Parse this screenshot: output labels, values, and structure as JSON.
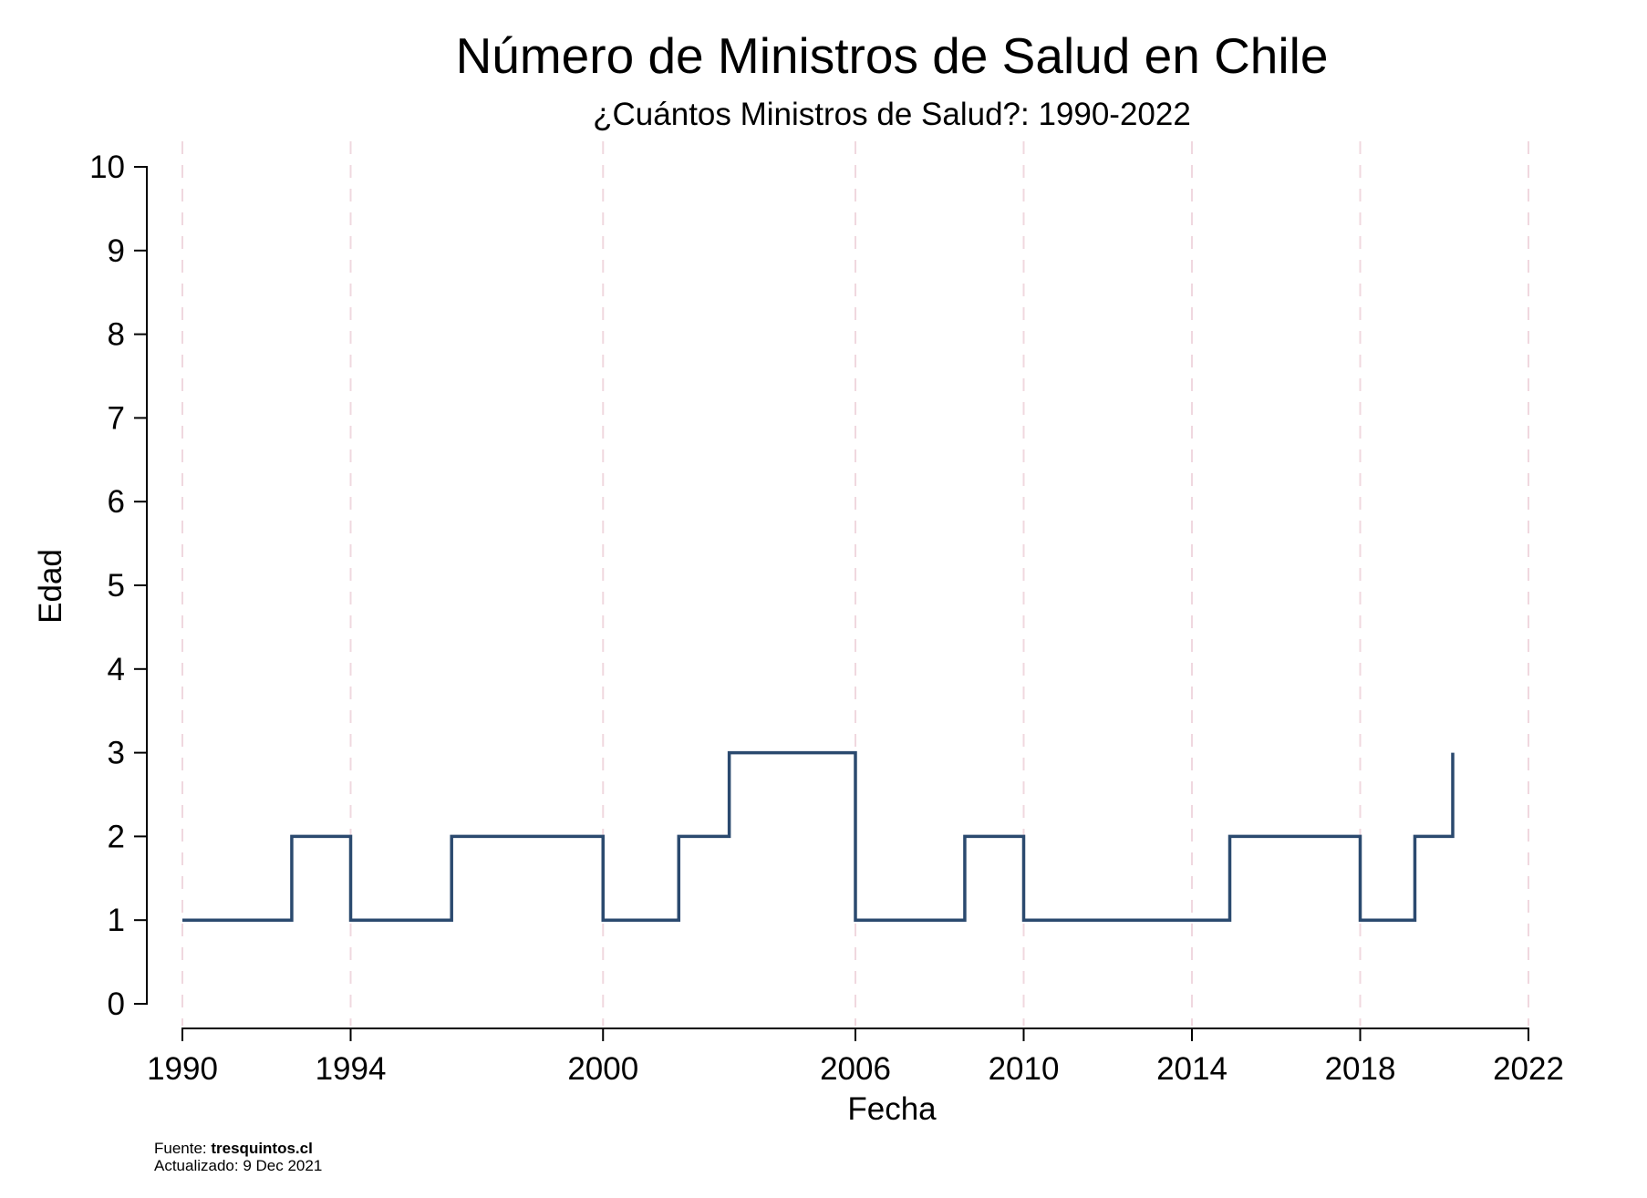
{
  "chart_data": {
    "type": "line",
    "step": true,
    "title": "Número de Ministros de Salud en Chile",
    "subtitle": "¿Cuántos Ministros de Salud?: 1990-2022",
    "xlabel": "Fecha",
    "ylabel": "Edad",
    "xlim": [
      1990,
      2022
    ],
    "ylim": [
      0,
      10
    ],
    "x_ticks": [
      1990,
      1994,
      2000,
      2006,
      2010,
      2014,
      2018,
      2022
    ],
    "y_ticks": [
      0,
      1,
      2,
      3,
      4,
      5,
      6,
      7,
      8,
      9,
      10
    ],
    "grid": {
      "x": "dashed",
      "y": false
    },
    "line_color": "#2b4a6f",
    "grid_color": "#f0d8df",
    "series": [
      {
        "x": [
          1990.0,
          1992.6,
          1994.0,
          1996.4,
          2000.0,
          2001.8,
          2003.0,
          2006.0,
          2008.6,
          2010.0,
          2014.9,
          2018.0,
          2019.3,
          2020.2
        ],
        "y": [
          1,
          2,
          1,
          2,
          1,
          2,
          3,
          1,
          2,
          1,
          2,
          1,
          2,
          3
        ]
      }
    ]
  },
  "footer": {
    "source_label": "Fuente: ",
    "source_value": "tresquintos.cl",
    "updated_label": "Actualizado:  9 Dec 2021"
  }
}
